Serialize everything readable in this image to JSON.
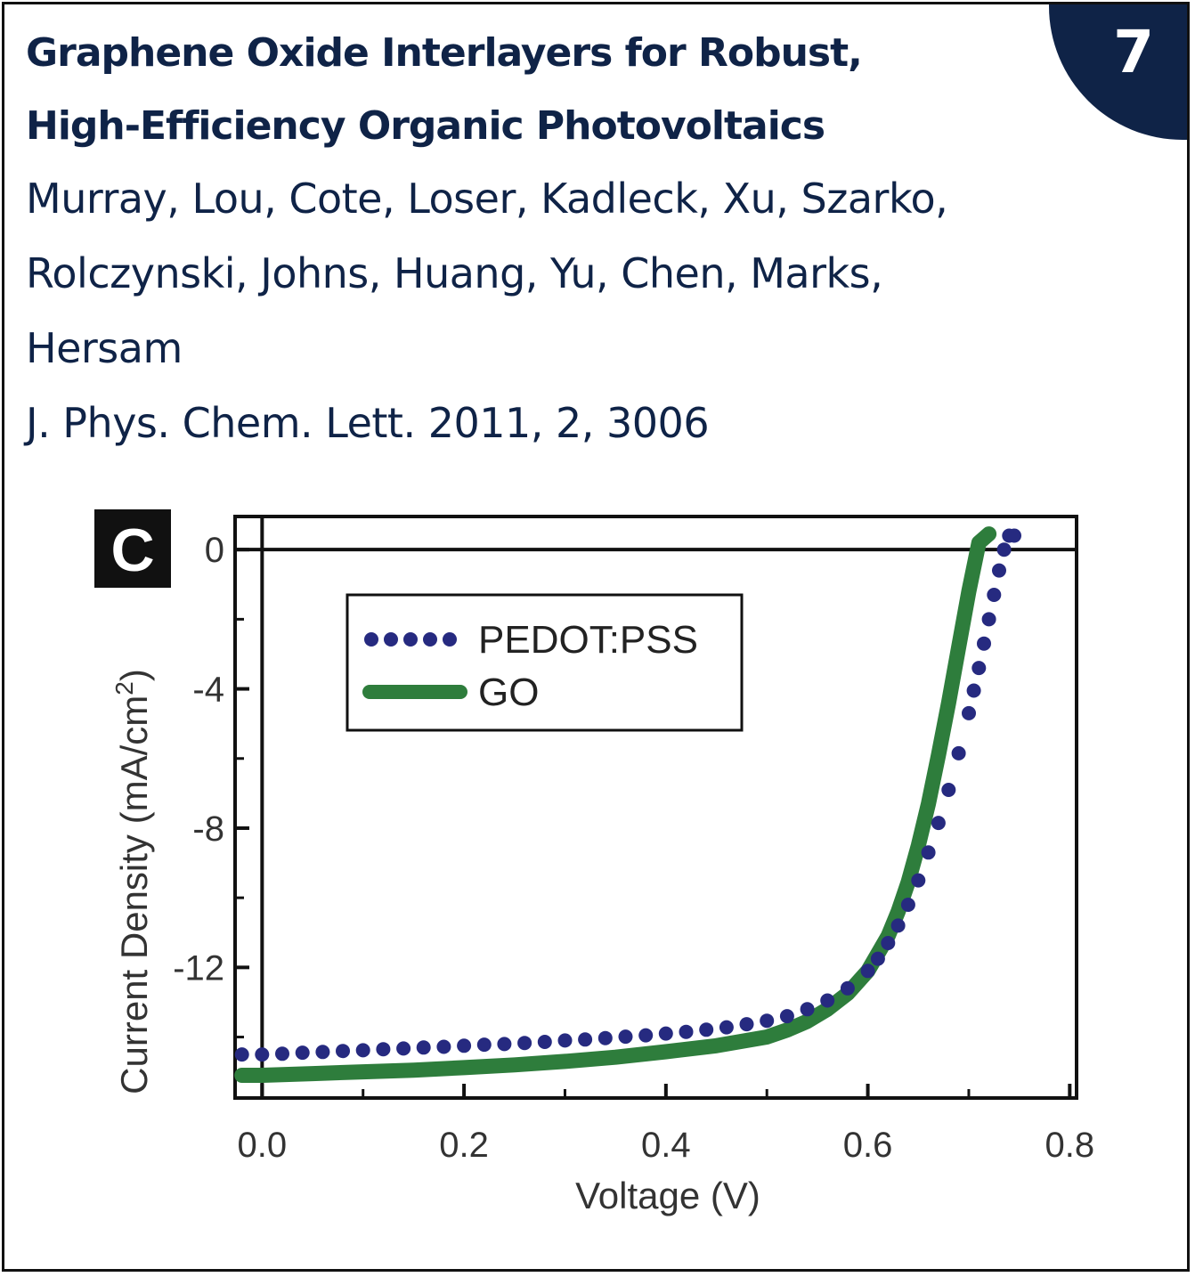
{
  "header": {
    "title_line1": "Graphene Oxide Interlayers for Robust,",
    "title_line2": "High-Efficiency Organic Photovoltaics",
    "authors_line1": "Murray, Lou, Cote, Loser, Kadleck, Xu, Szarko,",
    "authors_line2": "Rolczynski, Johns, Huang, Yu, Chen, Marks,",
    "authors_line3": "Hersam",
    "citation": "J. Phys. Chem. Lett. 2011, 2, 3006",
    "badge_number": "7"
  },
  "colors": {
    "navy": "#0f2347",
    "pedot": "#262a80",
    "go": "#2e7d3c"
  },
  "chart_data": {
    "type": "line",
    "panel_label": "C",
    "xlabel": "Voltage (V)",
    "ylabel": "Current Density (mA/cm",
    "ylabel_superscript": "2",
    "ylabel_suffix": ")",
    "xlim": [
      -0.025,
      0.805
    ],
    "ylim": [
      -15.7,
      0.9
    ],
    "x_ticks": [
      0.0,
      0.2,
      0.4,
      0.6,
      0.8
    ],
    "x_tick_labels": [
      "0.0",
      "0.2",
      "0.4",
      "0.6",
      "0.8"
    ],
    "y_ticks": [
      0,
      -4,
      -8,
      -12
    ],
    "y_tick_labels": [
      "0",
      "-4",
      "-8",
      "-12"
    ],
    "x_minor_ticks": [
      0.1,
      0.3,
      0.5,
      0.7
    ],
    "y_minor_ticks": [
      -2,
      -6,
      -10,
      -14
    ],
    "zero_line": true,
    "legend_position": "top-left",
    "series": [
      {
        "name": "PEDOT:PSS",
        "style": "dotted",
        "x": [
          -0.02,
          0.0,
          0.02,
          0.04,
          0.06,
          0.08,
          0.1,
          0.12,
          0.14,
          0.16,
          0.18,
          0.2,
          0.22,
          0.24,
          0.26,
          0.28,
          0.3,
          0.32,
          0.34,
          0.36,
          0.38,
          0.4,
          0.42,
          0.44,
          0.46,
          0.48,
          0.5,
          0.52,
          0.54,
          0.56,
          0.58,
          0.6,
          0.61,
          0.62,
          0.63,
          0.64,
          0.65,
          0.66,
          0.67,
          0.68,
          0.69,
          0.7,
          0.705,
          0.71,
          0.715,
          0.72,
          0.725,
          0.73,
          0.735,
          0.74,
          0.745
        ],
        "values": [
          -14.5,
          -14.5,
          -14.48,
          -14.45,
          -14.43,
          -14.4,
          -14.38,
          -14.35,
          -14.33,
          -14.3,
          -14.28,
          -14.25,
          -14.22,
          -14.2,
          -14.17,
          -14.14,
          -14.1,
          -14.07,
          -14.03,
          -13.99,
          -13.95,
          -13.9,
          -13.85,
          -13.79,
          -13.72,
          -13.63,
          -13.53,
          -13.4,
          -13.2,
          -12.95,
          -12.6,
          -12.1,
          -11.75,
          -11.3,
          -10.8,
          -10.2,
          -9.5,
          -8.7,
          -7.85,
          -6.9,
          -5.85,
          -4.7,
          -4.05,
          -3.4,
          -2.7,
          -2.0,
          -1.3,
          -0.6,
          0.0,
          0.4,
          0.4
        ]
      },
      {
        "name": "GO",
        "style": "solid",
        "x": [
          -0.02,
          0.0,
          0.05,
          0.1,
          0.15,
          0.2,
          0.25,
          0.3,
          0.35,
          0.4,
          0.45,
          0.5,
          0.52,
          0.54,
          0.56,
          0.58,
          0.6,
          0.62,
          0.63,
          0.64,
          0.65,
          0.66,
          0.67,
          0.68,
          0.69,
          0.7,
          0.71,
          0.72
        ],
        "values": [
          -15.1,
          -15.1,
          -15.05,
          -15.0,
          -14.95,
          -14.88,
          -14.8,
          -14.7,
          -14.58,
          -14.42,
          -14.25,
          -14.0,
          -13.8,
          -13.55,
          -13.2,
          -12.75,
          -12.1,
          -11.1,
          -10.4,
          -9.55,
          -8.5,
          -7.3,
          -5.9,
          -4.4,
          -2.8,
          -1.2,
          0.2,
          0.45
        ]
      }
    ]
  }
}
